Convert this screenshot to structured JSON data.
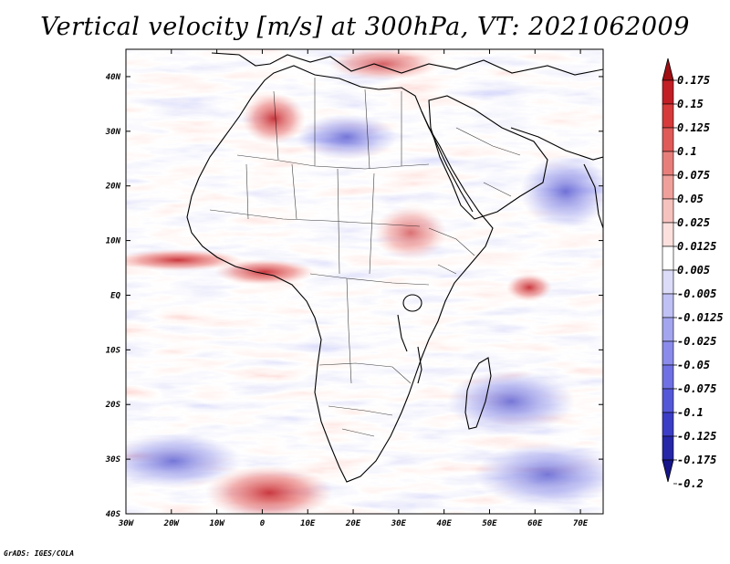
{
  "title": "Vertical velocity [m/s] at 300hPa, VT: 2021062009",
  "credit": "GrADS: IGES/COLA",
  "map": {
    "lat_labels": [
      "40N",
      "30N",
      "20N",
      "10N",
      "EQ",
      "10S",
      "20S",
      "30S",
      "40S"
    ],
    "lon_labels": [
      "30W",
      "20W",
      "10W",
      "0",
      "10E",
      "20E",
      "30E",
      "40E",
      "50E",
      "60E",
      "70E"
    ]
  },
  "colorbar": {
    "labels": [
      "0.175",
      "0.15",
      "0.125",
      "0.1",
      "0.075",
      "0.05",
      "0.025",
      "0.0125",
      "0.005",
      "-0.005",
      "-0.0125",
      "-0.025",
      "-0.05",
      "-0.075",
      "-0.1",
      "-0.125",
      "-0.175",
      "-0.2"
    ],
    "colors": [
      "#a00f14",
      "#c21e25",
      "#d63a3a",
      "#e05a58",
      "#e87e7a",
      "#f0a09b",
      "#f6c2bd",
      "#fbe0dd",
      "#ffffff",
      "#dcdcf8",
      "#bfc0f4",
      "#a4a5ef",
      "#8a8beb",
      "#6e70e3",
      "#5557d9",
      "#3b3dc6",
      "#2526a8",
      "#16158a"
    ]
  },
  "chart_data": {
    "type": "heatmap",
    "title": "Vertical velocity [m/s] at 300hPa, VT: 2021062009",
    "variable": "Vertical velocity",
    "units": "m/s",
    "level": "300hPa",
    "valid_time": "2021062009",
    "lon_range": [
      -30,
      75
    ],
    "lat_range": [
      -40,
      45
    ],
    "levels": [
      -0.2,
      -0.175,
      -0.125,
      -0.1,
      -0.075,
      -0.05,
      -0.025,
      -0.0125,
      -0.005,
      0.005,
      0.0125,
      0.025,
      0.05,
      0.075,
      0.1,
      0.125,
      0.15,
      0.175
    ]
  }
}
